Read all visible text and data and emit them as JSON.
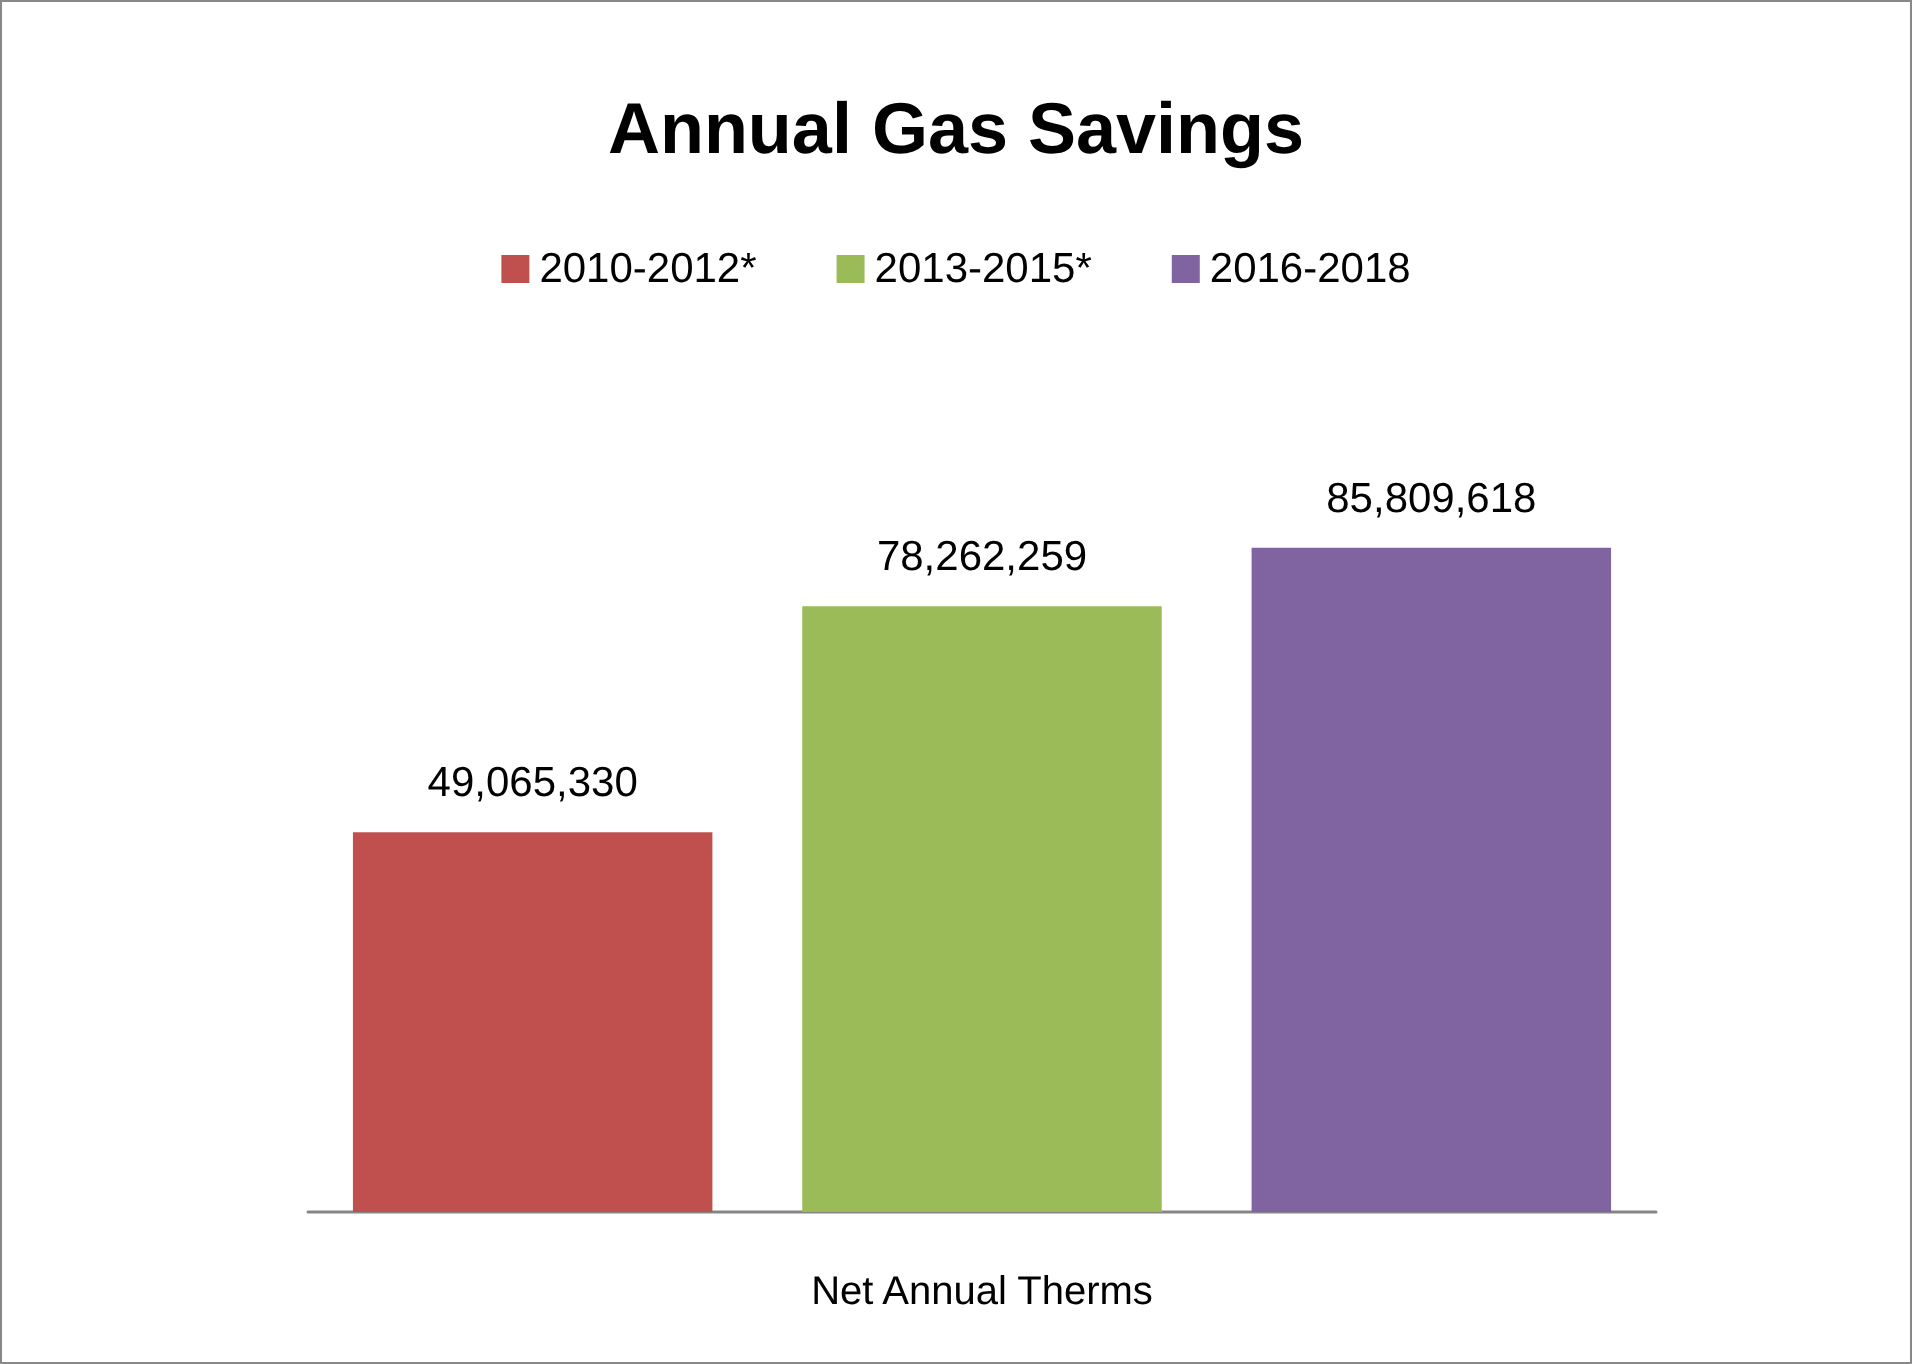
{
  "chart_data": {
    "type": "bar",
    "title": "Annual Gas Savings",
    "xlabel": "Net Annual Therms",
    "categories": [
      null,
      null,
      null
    ],
    "stacked": true,
    "series": [
      {
        "name": "2010-2012*",
        "color": "#c0504d",
        "values": [
          49065330,
          null,
          null
        ],
        "value_labels": [
          "49,065,330",
          null,
          null
        ]
      },
      {
        "name": "2013-2015*",
        "color": "#9bbb59",
        "values": [
          null,
          78262259,
          null
        ],
        "value_labels": [
          null,
          "78,262,259",
          null
        ]
      },
      {
        "name": "2016-2018",
        "color": "#8064a2",
        "values": [
          null,
          null,
          85809618
        ],
        "value_labels": [
          null,
          null,
          "85,809,618"
        ]
      }
    ],
    "legend": "top",
    "grid": false,
    "tick_labels": false
  }
}
